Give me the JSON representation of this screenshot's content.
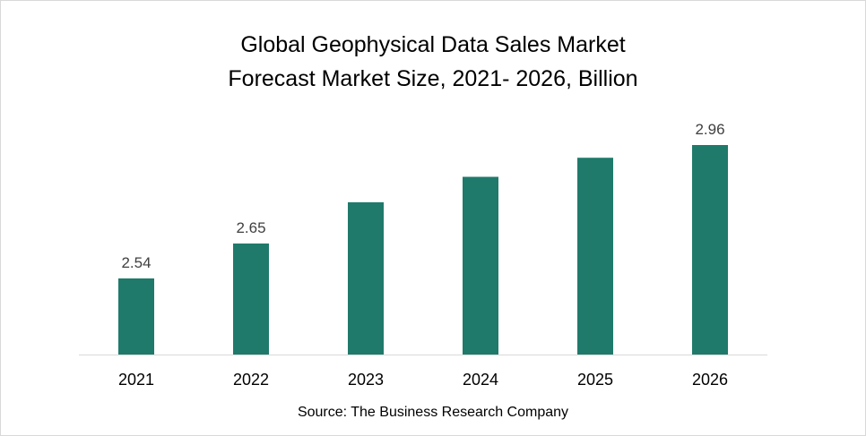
{
  "chart_data": {
    "type": "bar",
    "title_line1": "Global Geophysical  Data Sales Market",
    "title_line2": "Forecast Market Size, 2021- 2026, Billion",
    "categories": [
      "2021",
      "2022",
      "2023",
      "2024",
      "2025",
      "2026"
    ],
    "values": [
      2.54,
      2.65,
      2.78,
      2.86,
      2.92,
      2.96
    ],
    "data_labels": [
      "2.54",
      "2.65",
      "",
      "",
      "",
      "2.96"
    ],
    "bar_color": "#1f7a6b",
    "source": "Source: The Business Research Company"
  }
}
